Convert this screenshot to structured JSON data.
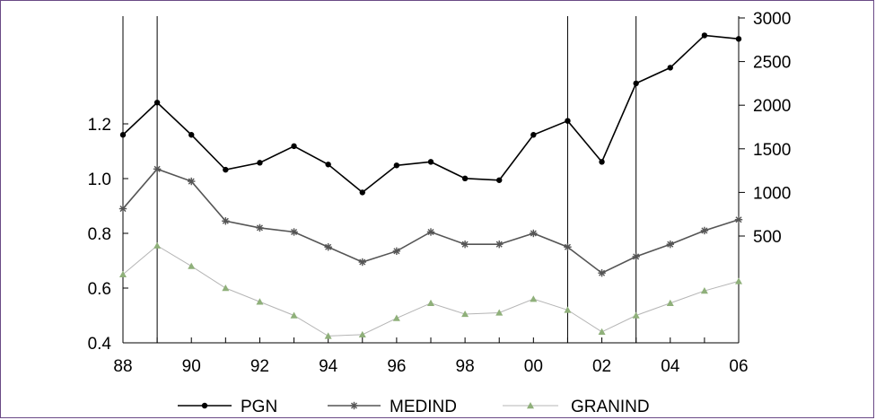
{
  "chart_data": {
    "type": "line",
    "title": "",
    "xlabel": "",
    "ylabel_left": "",
    "ylabel_right": "",
    "x": [
      "88",
      "89",
      "90",
      "91",
      "92",
      "93",
      "94",
      "95",
      "96",
      "97",
      "98",
      "99",
      "00",
      "01",
      "02",
      "03",
      "04",
      "05",
      "06"
    ],
    "x_tick_labels": [
      "88",
      "90",
      "92",
      "94",
      "96",
      "98",
      "00",
      "02",
      "04",
      "06"
    ],
    "left_axis": {
      "ticks": [
        "0.4",
        "0.6",
        "0.8",
        "1.0",
        "1.2"
      ],
      "range": [
        0.4,
        1.2
      ]
    },
    "right_axis": {
      "ticks": [
        "500",
        "1000",
        "1500",
        "2000",
        "2500",
        "3000"
      ],
      "range": [
        500,
        3000
      ]
    },
    "vertical_lines": [
      "89",
      "01",
      "03"
    ],
    "grid": false,
    "legend_position": "bottom",
    "series": [
      {
        "name": "PGN",
        "axis": "right",
        "color": "#000000",
        "marker": "dot",
        "values": [
          1660,
          2030,
          1660,
          1260,
          1340,
          1530,
          1320,
          1000,
          1310,
          1350,
          1160,
          1140,
          1660,
          1820,
          1350,
          2250,
          2430,
          2800,
          2760
        ]
      },
      {
        "name": "MEDIND",
        "axis": "left",
        "color": "#555555",
        "marker": "asterisk",
        "values": [
          0.89,
          1.035,
          0.99,
          0.845,
          0.82,
          0.805,
          0.75,
          0.695,
          0.735,
          0.805,
          0.76,
          0.76,
          0.8,
          0.75,
          0.655,
          0.715,
          0.76,
          0.81,
          0.85
        ]
      },
      {
        "name": "GRANIND",
        "axis": "left",
        "color": "#8fb07a",
        "marker": "triangle",
        "values": [
          0.65,
          0.755,
          0.68,
          0.6,
          0.55,
          0.5,
          0.425,
          0.43,
          0.49,
          0.545,
          0.505,
          0.51,
          0.56,
          0.52,
          0.44,
          0.5,
          0.545,
          0.59,
          0.625
        ]
      }
    ]
  }
}
